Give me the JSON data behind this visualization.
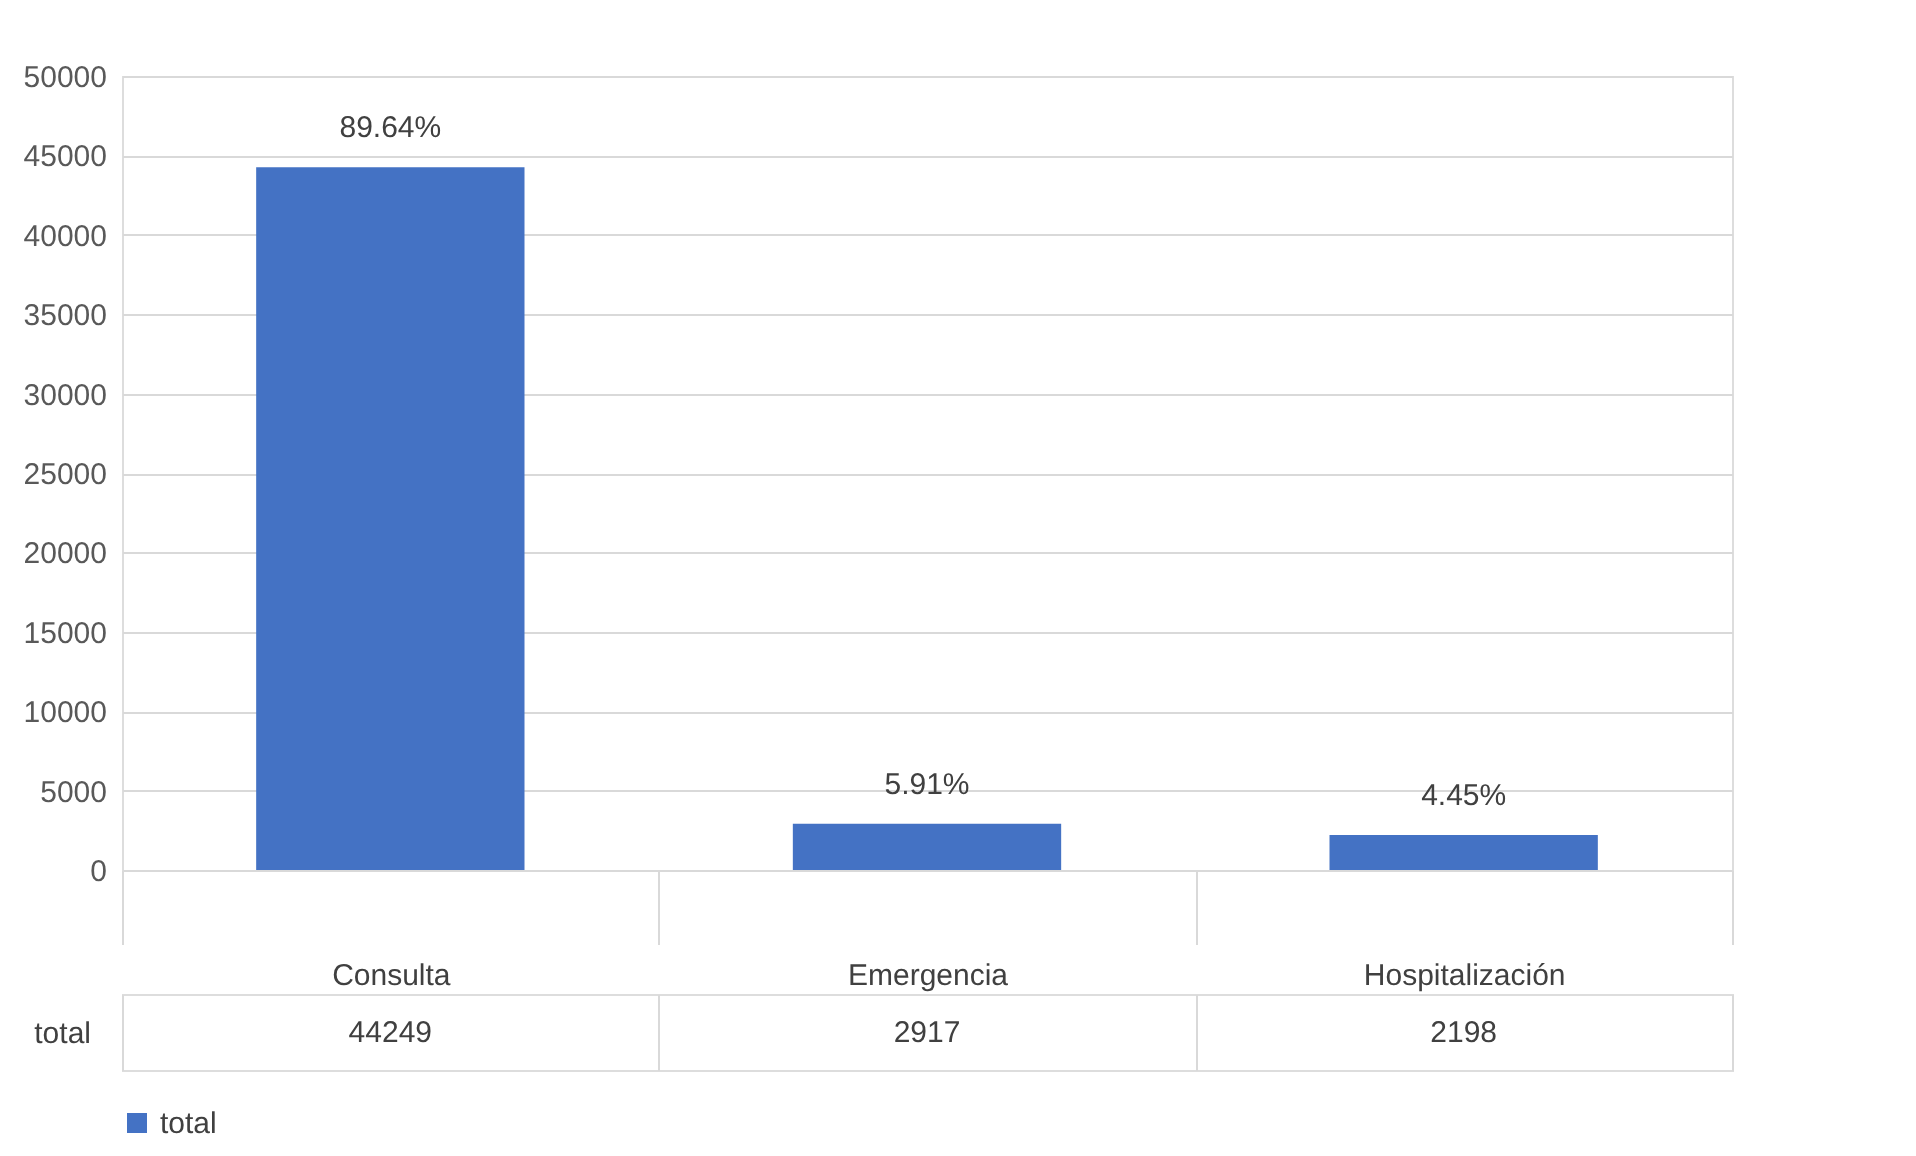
{
  "chart_data": {
    "type": "bar",
    "categories": [
      "Consulta",
      "Emergencia",
      "Hospitalización"
    ],
    "series": [
      {
        "name": "total",
        "color": "#4472c4",
        "values": [
          44249,
          2917,
          2198
        ]
      }
    ],
    "annotations": [
      {
        "text": "89.64%",
        "x": "Consulta",
        "y": 44249
      },
      {
        "text": "5.91%",
        "x": "Emergencia",
        "y": 2917
      },
      {
        "text": "4.45%",
        "x": "Hospitalización",
        "y": 2198
      }
    ],
    "ylim": [
      0,
      50000
    ],
    "yticks": [
      0,
      5000,
      10000,
      15000,
      20000,
      25000,
      30000,
      35000,
      40000,
      45000,
      50000
    ],
    "grid": "y",
    "legend": "bottom",
    "data_labels": true
  }
}
